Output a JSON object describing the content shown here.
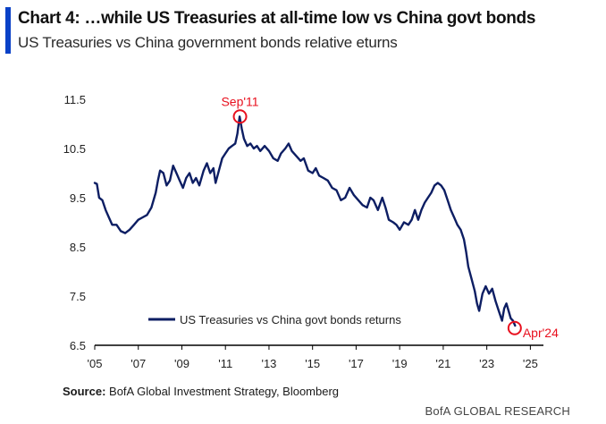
{
  "header": {
    "title": "Chart 4: …while US Treasuries at all-time low vs China govt bonds",
    "subtitle": "US Treasuries vs China government bonds relative eturns"
  },
  "footer": {
    "source_label": "Source:",
    "source_text": "BofA Global Investment Strategy, Bloomberg",
    "credit": "BofA GLOBAL RESEARCH"
  },
  "colors": {
    "line": "#0d1e63",
    "annotation": "#e8101e",
    "accent": "#0a41c7",
    "axis": "#000000"
  },
  "chart_data": {
    "type": "line",
    "title": "US Treasuries vs China government bonds relative eturns",
    "xlabel": "",
    "ylabel": "",
    "xlim": [
      2005,
      2025.6
    ],
    "ylim": [
      6.5,
      11.5
    ],
    "yticks": [
      6.5,
      7.5,
      8.5,
      9.5,
      10.5,
      11.5
    ],
    "ytick_labels": [
      "6.5",
      "7.5",
      "8.5",
      "9.5",
      "10.5",
      "11.5"
    ],
    "xticks": [
      2005,
      2007,
      2009,
      2011,
      2013,
      2015,
      2017,
      2019,
      2021,
      2023,
      2025
    ],
    "xtick_labels": [
      "'05",
      "'07",
      "'09",
      "'11",
      "'13",
      "'15",
      "'17",
      "'19",
      "'21",
      "'23",
      "'25"
    ],
    "legend": {
      "position": "bottom-left",
      "label": "US Treasuries vs China govt bonds returns"
    },
    "series": [
      {
        "name": "US Treasuries vs China govt bonds returns",
        "points": [
          [
            2005.0,
            9.8
          ],
          [
            2005.1,
            9.78
          ],
          [
            2005.2,
            9.5
          ],
          [
            2005.35,
            9.45
          ],
          [
            2005.5,
            9.25
          ],
          [
            2005.65,
            9.1
          ],
          [
            2005.8,
            8.95
          ],
          [
            2006.0,
            8.95
          ],
          [
            2006.2,
            8.82
          ],
          [
            2006.4,
            8.78
          ],
          [
            2006.6,
            8.85
          ],
          [
            2006.8,
            8.95
          ],
          [
            2007.0,
            9.05
          ],
          [
            2007.2,
            9.1
          ],
          [
            2007.4,
            9.15
          ],
          [
            2007.6,
            9.3
          ],
          [
            2007.8,
            9.6
          ],
          [
            2007.9,
            9.85
          ],
          [
            2008.0,
            10.05
          ],
          [
            2008.15,
            10.0
          ],
          [
            2008.3,
            9.75
          ],
          [
            2008.45,
            9.85
          ],
          [
            2008.6,
            10.15
          ],
          [
            2008.75,
            10.0
          ],
          [
            2008.9,
            9.85
          ],
          [
            2009.05,
            9.7
          ],
          [
            2009.2,
            9.9
          ],
          [
            2009.35,
            10.0
          ],
          [
            2009.5,
            9.8
          ],
          [
            2009.65,
            9.9
          ],
          [
            2009.8,
            9.75
          ],
          [
            2010.0,
            10.05
          ],
          [
            2010.15,
            10.2
          ],
          [
            2010.3,
            10.0
          ],
          [
            2010.45,
            10.1
          ],
          [
            2010.55,
            9.8
          ],
          [
            2010.7,
            10.05
          ],
          [
            2010.85,
            10.3
          ],
          [
            2011.0,
            10.4
          ],
          [
            2011.15,
            10.5
          ],
          [
            2011.3,
            10.55
          ],
          [
            2011.45,
            10.6
          ],
          [
            2011.55,
            10.8
          ],
          [
            2011.65,
            11.15
          ],
          [
            2011.75,
            10.9
          ],
          [
            2011.85,
            10.7
          ],
          [
            2012.0,
            10.55
          ],
          [
            2012.15,
            10.6
          ],
          [
            2012.3,
            10.5
          ],
          [
            2012.45,
            10.55
          ],
          [
            2012.6,
            10.45
          ],
          [
            2012.8,
            10.55
          ],
          [
            2013.0,
            10.45
          ],
          [
            2013.2,
            10.3
          ],
          [
            2013.4,
            10.25
          ],
          [
            2013.55,
            10.4
          ],
          [
            2013.75,
            10.5
          ],
          [
            2013.9,
            10.6
          ],
          [
            2014.05,
            10.45
          ],
          [
            2014.25,
            10.35
          ],
          [
            2014.45,
            10.25
          ],
          [
            2014.6,
            10.3
          ],
          [
            2014.8,
            10.05
          ],
          [
            2015.0,
            10.0
          ],
          [
            2015.15,
            10.1
          ],
          [
            2015.3,
            9.95
          ],
          [
            2015.5,
            9.9
          ],
          [
            2015.7,
            9.85
          ],
          [
            2015.9,
            9.7
          ],
          [
            2016.1,
            9.65
          ],
          [
            2016.3,
            9.45
          ],
          [
            2016.5,
            9.5
          ],
          [
            2016.7,
            9.7
          ],
          [
            2016.9,
            9.55
          ],
          [
            2017.1,
            9.45
          ],
          [
            2017.3,
            9.35
          ],
          [
            2017.5,
            9.3
          ],
          [
            2017.65,
            9.5
          ],
          [
            2017.8,
            9.45
          ],
          [
            2018.0,
            9.25
          ],
          [
            2018.2,
            9.5
          ],
          [
            2018.35,
            9.3
          ],
          [
            2018.5,
            9.05
          ],
          [
            2018.7,
            9.0
          ],
          [
            2018.85,
            8.95
          ],
          [
            2019.0,
            8.85
          ],
          [
            2019.2,
            9.0
          ],
          [
            2019.4,
            8.95
          ],
          [
            2019.55,
            9.05
          ],
          [
            2019.7,
            9.25
          ],
          [
            2019.85,
            9.05
          ],
          [
            2020.0,
            9.25
          ],
          [
            2020.15,
            9.4
          ],
          [
            2020.3,
            9.5
          ],
          [
            2020.45,
            9.6
          ],
          [
            2020.6,
            9.75
          ],
          [
            2020.75,
            9.8
          ],
          [
            2020.9,
            9.75
          ],
          [
            2021.05,
            9.65
          ],
          [
            2021.2,
            9.45
          ],
          [
            2021.35,
            9.25
          ],
          [
            2021.5,
            9.1
          ],
          [
            2021.65,
            8.95
          ],
          [
            2021.8,
            8.85
          ],
          [
            2021.95,
            8.65
          ],
          [
            2022.05,
            8.4
          ],
          [
            2022.15,
            8.1
          ],
          [
            2022.3,
            7.85
          ],
          [
            2022.45,
            7.6
          ],
          [
            2022.55,
            7.35
          ],
          [
            2022.65,
            7.2
          ],
          [
            2022.8,
            7.55
          ],
          [
            2022.95,
            7.7
          ],
          [
            2023.1,
            7.55
          ],
          [
            2023.25,
            7.65
          ],
          [
            2023.4,
            7.4
          ],
          [
            2023.55,
            7.2
          ],
          [
            2023.7,
            7.0
          ],
          [
            2023.8,
            7.25
          ],
          [
            2023.9,
            7.35
          ],
          [
            2024.0,
            7.2
          ],
          [
            2024.1,
            7.05
          ],
          [
            2024.2,
            7.0
          ],
          [
            2024.3,
            6.9
          ]
        ]
      }
    ],
    "annotations": [
      {
        "label": "Sep'11",
        "x": 2011.67,
        "y": 11.15,
        "label_side": "above"
      },
      {
        "label": "Apr'24",
        "x": 2024.28,
        "y": 6.85,
        "label_side": "right"
      }
    ]
  }
}
